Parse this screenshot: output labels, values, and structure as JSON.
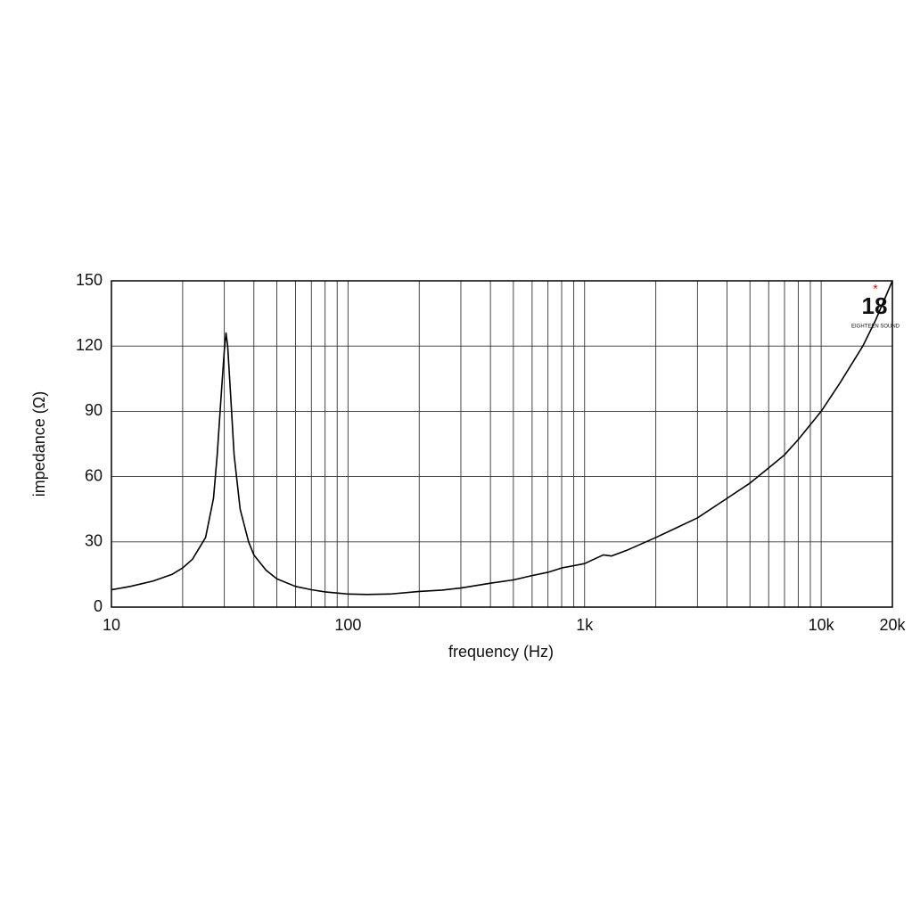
{
  "chart_data": {
    "type": "line",
    "xlabel": "frequency (Hz)",
    "ylabel": "impedance (Ω)",
    "xscale": "log",
    "grid": true,
    "logo": "18",
    "logo_text": "EIGHTEEN SOUND",
    "xlim": [
      10,
      20000
    ],
    "ylim": [
      0,
      150
    ],
    "xticks": [
      10,
      100,
      {
        "value": 1000,
        "label": "1k"
      },
      {
        "value": 10000,
        "label": "10k"
      },
      {
        "value": 20000,
        "label": "20k"
      }
    ],
    "xminorticks": [
      20,
      30,
      40,
      50,
      60,
      70,
      80,
      90,
      200,
      300,
      400,
      500,
      600,
      700,
      800,
      900,
      2000,
      3000,
      4000,
      5000,
      6000,
      7000,
      8000,
      9000
    ],
    "yticks": [
      0,
      30,
      60,
      90,
      120,
      150
    ],
    "series": [
      {
        "name": "impedance",
        "color": "#000000",
        "x": [
          10,
          12,
          15,
          18,
          20,
          22,
          25,
          27,
          28,
          29,
          30,
          30.5,
          31,
          32,
          33,
          35,
          38,
          40,
          45,
          50,
          60,
          70,
          80,
          100,
          120,
          150,
          200,
          250,
          300,
          400,
          500,
          600,
          700,
          800,
          1000,
          1200,
          1300,
          1500,
          2000,
          3000,
          4000,
          5000,
          6000,
          7000,
          8000,
          10000,
          12000,
          15000,
          17000,
          20000
        ],
        "values": [
          8,
          9.5,
          12,
          15,
          18,
          22,
          32,
          50,
          70,
          95,
          118,
          126,
          120,
          95,
          70,
          45,
          30,
          24,
          17,
          13,
          9.5,
          8,
          7,
          6,
          5.8,
          6,
          7.2,
          7.8,
          8.8,
          11,
          12.5,
          14.5,
          16,
          18,
          20,
          24,
          23.5,
          26,
          32,
          41,
          50,
          57,
          64,
          70,
          77,
          90,
          103,
          120,
          132,
          150
        ]
      }
    ]
  }
}
